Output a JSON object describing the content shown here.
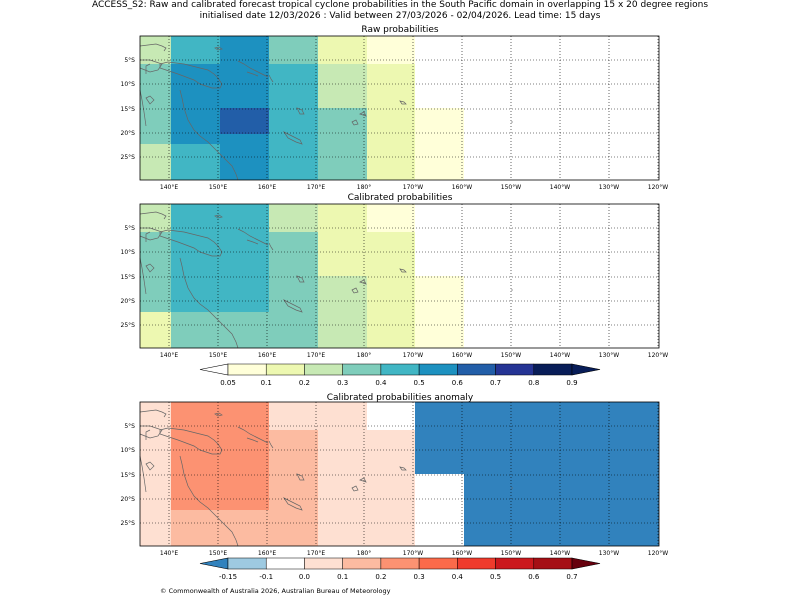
{
  "header": {
    "title_line1": "ACCESS_S2: Raw and calibrated forecast tropical cyclone probabilities in the South Pacific domain in overlapping 15 x 20 degree regions",
    "title_line2": "initialised date 12/03/2026 :  Valid between 27/03/2026 - 02/04/2026. Lead time: 15 days"
  },
  "footer": {
    "copyright": "© Commonwealth of Australia 2026, Australian Bureau of Meteorology"
  },
  "chart_data": [
    {
      "type": "heatmap",
      "title": "Raw probabilities",
      "x_ticks": [
        "140°E",
        "150°E",
        "160°E",
        "170°E",
        "180°",
        "170°W",
        "160°W",
        "150°W",
        "140°W",
        "130°W",
        "120°W"
      ],
      "y_ticks": [
        "5°S",
        "10°S",
        "15°S",
        "20°S",
        "25°S"
      ],
      "columns": [
        "134°E-140.5°E",
        "140.5°E-150°E",
        "150°E-160°E",
        "160°E-170°E",
        "170°E-180°",
        "180°-170°W",
        "170°W-160°W",
        "160°W-120°W"
      ],
      "rows": [
        "0-5.5°S",
        "5.5-15°S",
        "15-20°S",
        "20-22.5°S",
        "22.5-30°S"
      ],
      "values": [
        [
          0.25,
          0.45,
          0.55,
          0.35,
          0.15,
          0.05,
          0.0,
          0.0
        ],
        [
          0.35,
          0.55,
          0.55,
          0.45,
          0.25,
          0.15,
          0.0,
          0.0
        ],
        [
          0.35,
          0.55,
          0.65,
          0.45,
          0.35,
          0.15,
          0.05,
          0.0
        ],
        [
          0.35,
          0.55,
          0.55,
          0.45,
          0.35,
          0.15,
          0.05,
          0.0
        ],
        [
          0.25,
          0.45,
          0.55,
          0.45,
          0.35,
          0.15,
          0.05,
          0.0
        ]
      ]
    },
    {
      "type": "heatmap",
      "title": "Calibrated probabilities",
      "x_ticks": [
        "140°E",
        "150°E",
        "160°E",
        "170°E",
        "180°",
        "170°W",
        "160°W",
        "150°W",
        "140°W",
        "130°W",
        "120°W"
      ],
      "y_ticks": [
        "5°S",
        "10°S",
        "15°S",
        "20°S",
        "25°S"
      ],
      "columns": [
        "134°E-140.5°E",
        "140.5°E-150°E",
        "150°E-160°E",
        "160°E-170°E",
        "170°E-180°",
        "180°-170°W",
        "170°W-160°W",
        "160°W-120°W"
      ],
      "rows": [
        "0-5.5°S",
        "5.5-15°S",
        "15-20°S",
        "20-22.5°S",
        "22.5-30°S"
      ],
      "values": [
        [
          0.25,
          0.45,
          0.45,
          0.25,
          0.15,
          0.05,
          0.0,
          0.0
        ],
        [
          0.35,
          0.45,
          0.45,
          0.35,
          0.15,
          0.15,
          0.0,
          0.0
        ],
        [
          0.35,
          0.45,
          0.45,
          0.35,
          0.25,
          0.15,
          0.05,
          0.0
        ],
        [
          0.35,
          0.45,
          0.45,
          0.35,
          0.25,
          0.15,
          0.05,
          0.0
        ],
        [
          0.15,
          0.35,
          0.35,
          0.35,
          0.25,
          0.15,
          0.05,
          0.0
        ]
      ]
    },
    {
      "type": "heatmap",
      "title": "Calibrated probabilities anomaly",
      "x_ticks": [
        "140°E",
        "150°E",
        "160°E",
        "170°E",
        "180°",
        "170°W",
        "160°W",
        "150°W",
        "140°W",
        "130°W",
        "120°W"
      ],
      "y_ticks": [
        "5°S",
        "10°S",
        "15°S",
        "20°S",
        "25°S"
      ],
      "columns": [
        "134°E-140.5°E",
        "140.5°E-150°E",
        "150°E-160°E",
        "160°E-170°E",
        "170°E-180°",
        "180°-170°W",
        "170°W-160°W",
        "160°W-120°W"
      ],
      "rows": [
        "0-5.5°S",
        "5.5-15°S",
        "15-20°S",
        "20-22.5°S",
        "22.5-30°S"
      ],
      "values": [
        [
          0.05,
          0.25,
          0.25,
          0.05,
          0.0,
          -0.1,
          -0.2,
          -0.2
        ],
        [
          0.05,
          0.25,
          0.25,
          0.15,
          0.0,
          0.0,
          -0.2,
          -0.2
        ],
        [
          0.05,
          0.25,
          0.25,
          0.15,
          0.05,
          0.0,
          -0.1,
          -0.2
        ],
        [
          0.05,
          0.25,
          0.25,
          0.15,
          0.05,
          0.0,
          -0.1,
          -0.2
        ],
        [
          0.0,
          0.15,
          0.15,
          0.15,
          0.05,
          0.0,
          -0.1,
          -0.2
        ]
      ]
    }
  ],
  "colorbars": {
    "probability": {
      "ticks": [
        "0.05",
        "0.1",
        "0.2",
        "0.3",
        "0.4",
        "0.5",
        "0.6",
        "0.7",
        "0.8",
        "0.9"
      ],
      "colors": [
        "#ffffff",
        "#ffffd9",
        "#edf8b1",
        "#c7e9b4",
        "#7fcdbb",
        "#41b6c4",
        "#1d91c0",
        "#225ea8",
        "#253494",
        "#081d58"
      ]
    },
    "anomaly": {
      "ticks": [
        "-0.15",
        "-0.1",
        "0.0",
        "0.1",
        "0.2",
        "0.3",
        "0.4",
        "0.5",
        "0.6",
        "0.7"
      ],
      "colors": [
        "#3182bd",
        "#9ecae1",
        "#ffffff",
        "#fee0d2",
        "#fcbba1",
        "#fc9272",
        "#fb6a4a",
        "#ef3b2c",
        "#cb181d",
        "#a50f15",
        "#67000d"
      ]
    }
  }
}
